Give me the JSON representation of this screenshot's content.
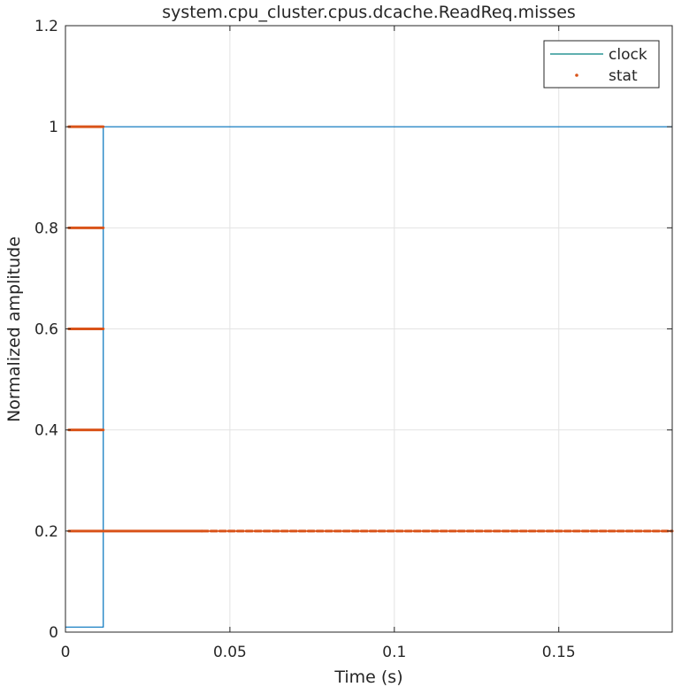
{
  "chart_data": {
    "type": "line",
    "title": "system.cpu_cluster.cpus.dcache.ReadReq.misses",
    "xlabel": "Time (s)",
    "ylabel": "Normalized amplitude",
    "xlim": [
      0,
      0.1845
    ],
    "ylim": [
      0,
      1.2
    ],
    "xticks": [
      0,
      0.05,
      0.1,
      0.15
    ],
    "xtick_labels": [
      "0",
      "0.05",
      "0.1",
      "0.15"
    ],
    "yticks": [
      0,
      0.2,
      0.4,
      0.6,
      0.8,
      1,
      1.2
    ],
    "ytick_labels": [
      "0",
      "0.2",
      "0.4",
      "0.6",
      "0.8",
      "1",
      "1.2"
    ],
    "grid": true,
    "legend_position": "top-right",
    "colors": {
      "clock": "#0072BD",
      "stat": "#D95319",
      "legend_clock": "#008080"
    },
    "series": [
      {
        "name": "clock",
        "style": "line",
        "points": [
          [
            0,
            0.01
          ],
          [
            0.0115,
            0.01
          ],
          [
            0.0115,
            1
          ],
          [
            0.1845,
            1
          ]
        ]
      },
      {
        "name": "stat",
        "style": "dots",
        "segments": [
          {
            "y": 1.0,
            "ranges": [
              [
                0.001,
                0.0115
              ]
            ]
          },
          {
            "y": 0.8,
            "ranges": [
              [
                0.001,
                0.0115
              ]
            ]
          },
          {
            "y": 0.6,
            "ranges": [
              [
                0.001,
                0.0115
              ]
            ]
          },
          {
            "y": 0.4,
            "ranges": [
              [
                0.001,
                0.0115
              ]
            ]
          },
          {
            "y": 0.2,
            "ranges": [
              [
                0.001,
                0.0415
              ],
              [
                0.0415,
                0.1845
              ]
            ]
          }
        ]
      }
    ]
  }
}
